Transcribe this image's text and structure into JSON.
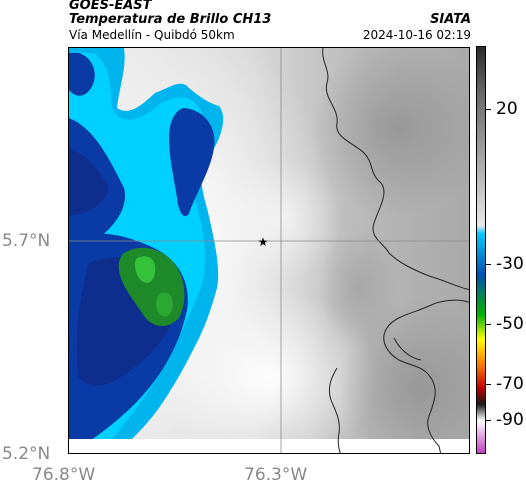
{
  "header": {
    "satellite": "GOES-EAST",
    "product": "Temperatura de Brillo CH13",
    "region": "Vía Medellín - Quibdó 50km",
    "agency": "SIATA",
    "timestamp": "2024-10-16 02:19"
  },
  "map": {
    "lat_ticks": [
      "5.7°N",
      "5.2°N"
    ],
    "lon_ticks": [
      "76.8°W",
      "76.3°W"
    ],
    "marker": "star-marker"
  },
  "colorbar": {
    "labels": [
      "20",
      "-30",
      "-50",
      "-70",
      "-90"
    ],
    "gradient": [
      "#2b2b2b",
      "#6b6b6b",
      "#a8a8a8",
      "#e8e8e8",
      "#00c8ff",
      "#0050b4",
      "#00b400",
      "#ffff00",
      "#ff8000",
      "#c00000",
      "#1a1a1a",
      "#ffffff",
      "#c040c0"
    ]
  }
}
